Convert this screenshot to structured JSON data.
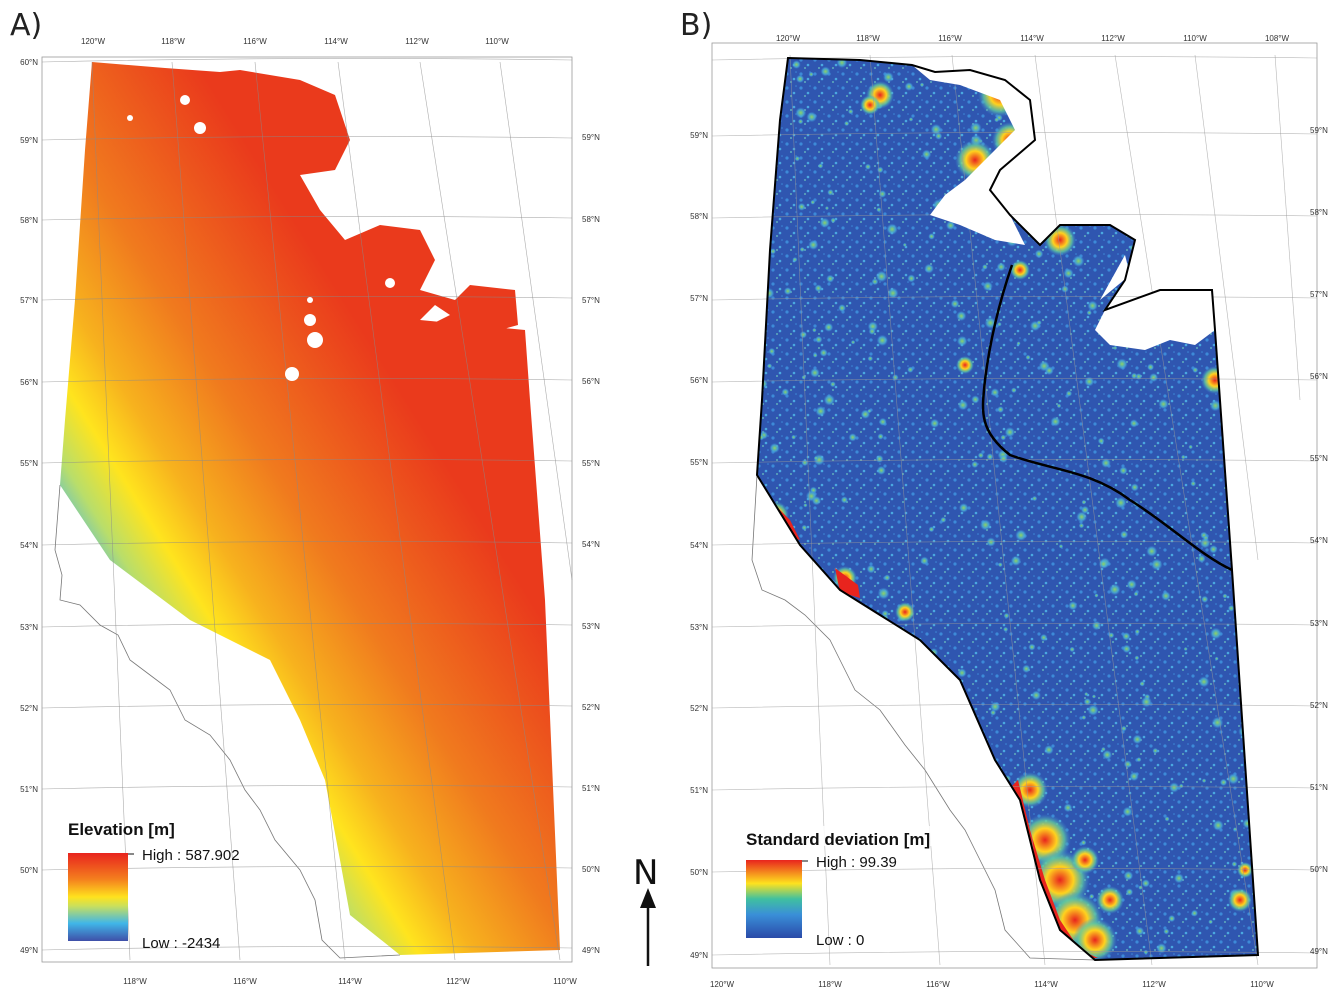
{
  "panels": [
    {
      "label": "A)",
      "legend": {
        "title": "Elevation [m]",
        "high_label": "High : 587.902",
        "low_label": "Low : -2434",
        "colors": [
          "#e8241e",
          "#f4801e",
          "#ffe21e",
          "#cbe05a",
          "#40b6e8",
          "#3f4fa8"
        ]
      },
      "top_ticks": [
        "120°W",
        "118°W",
        "116°W",
        "114°W",
        "112°W",
        "110°W"
      ],
      "bottom_ticks": [
        "118°W",
        "116°W",
        "114°W",
        "112°W",
        "110°W"
      ],
      "left_ticks": [
        "60°N",
        "59°N",
        "58°N",
        "57°N",
        "56°N",
        "55°N",
        "54°N",
        "53°N",
        "52°N",
        "51°N",
        "50°N",
        "49°N"
      ],
      "right_ticks": [
        "59°N",
        "58°N",
        "57°N",
        "56°N",
        "55°N",
        "54°N",
        "53°N",
        "52°N",
        "51°N",
        "50°N",
        "49°N"
      ]
    },
    {
      "label": "B)",
      "legend": {
        "title": "Standard deviation [m]",
        "high_label": "High : 99.39",
        "low_label": "Low : 0",
        "colors": [
          "#e8241e",
          "#ffe21e",
          "#40c0a0",
          "#3a8fd8",
          "#2a4aa8"
        ]
      },
      "top_ticks": [
        "120°W",
        "118°W",
        "116°W",
        "114°W",
        "112°W",
        "110°W",
        "108°W"
      ],
      "bottom_ticks": [
        "120°W",
        "118°W",
        "116°W",
        "114°W",
        "112°W",
        "110°W"
      ],
      "left_ticks": [
        "59°N",
        "58°N",
        "57°N",
        "56°N",
        "55°N",
        "54°N",
        "53°N",
        "52°N",
        "51°N",
        "50°N",
        "49°N"
      ],
      "right_ticks": [
        "59°N",
        "58°N",
        "57°N",
        "56°N",
        "55°N",
        "54°N",
        "53°N",
        "52°N",
        "51°N",
        "50°N",
        "49°N"
      ]
    }
  ],
  "north_arrow": "N"
}
